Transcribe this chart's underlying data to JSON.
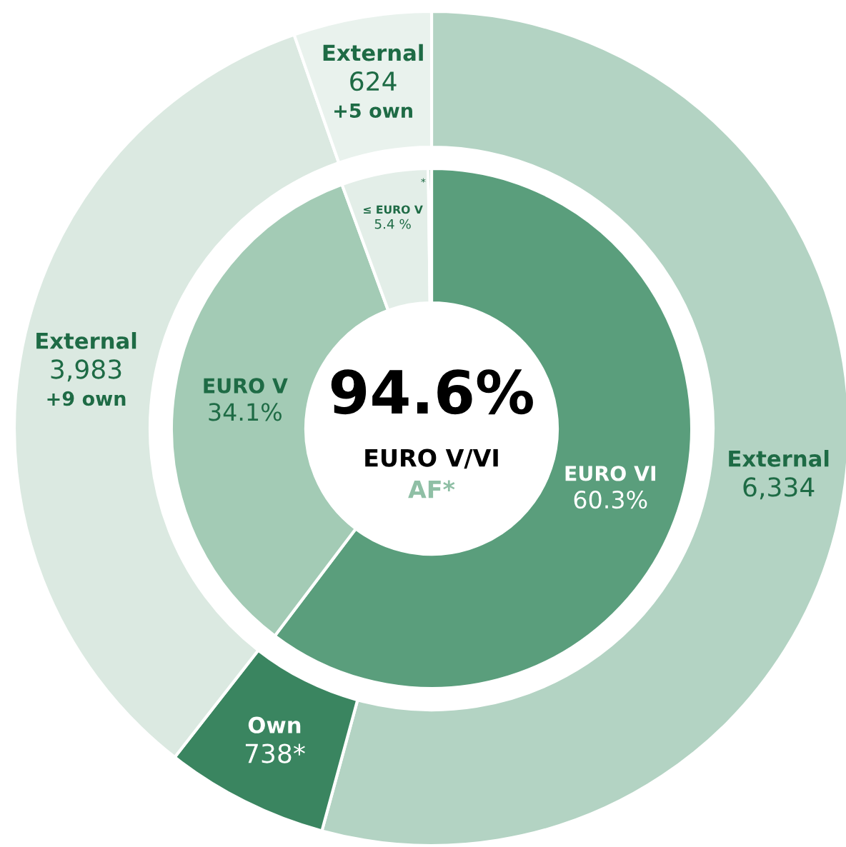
{
  "chart_data": {
    "type": "donut",
    "series": [
      {
        "values": [
          6334,
          738,
          3983,
          624
        ],
        "colors": [
          "#b3d3c3",
          "#3a8560",
          "#dbe9e1",
          "#e9f2ed"
        ],
        "value_labels": [
          "External\n6,334",
          "Own\n738*",
          "External\n3,983\n+9 own",
          "External\n624\n+5 own"
        ]
      },
      {
        "values": [
          60.3,
          34.1,
          5.4,
          0.2
        ],
        "colors": [
          "#5a9e7c",
          "#a3cbb5",
          "#e3eee8",
          "#5a9e7c"
        ],
        "value_labels": [
          "EURO VI\n60.3%",
          "EURO V\n34.1%",
          "≤ EURO V\n5.4 %",
          "*"
        ]
      }
    ],
    "annotations": [
      "94.6%",
      "EURO V/VI",
      "AF*"
    ]
  }
}
